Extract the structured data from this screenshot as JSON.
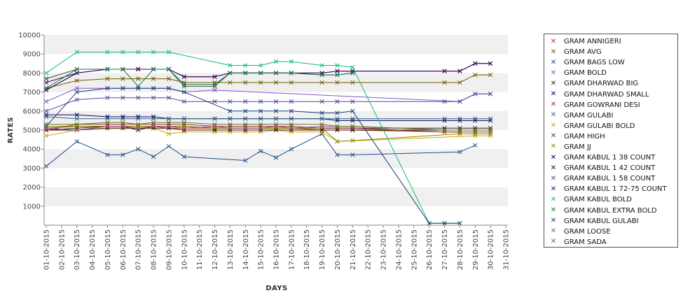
{
  "chart_data": {
    "type": "line",
    "title": "",
    "xlabel": "DAYS",
    "ylabel": "RATES",
    "ylim": [
      0,
      10000
    ],
    "yticks": [
      1000,
      2000,
      3000,
      4000,
      5000,
      6000,
      7000,
      8000,
      9000,
      10000
    ],
    "x": [
      "01-10-2015",
      "02-10-2015",
      "03-10-2015",
      "04-10-2015",
      "05-10-2015",
      "06-10-2015",
      "07-10-2015",
      "08-10-2015",
      "09-10-2015",
      "10-10-2015",
      "11-10-2015",
      "12-10-2015",
      "13-10-2015",
      "14-10-2015",
      "15-10-2015",
      "16-10-2015",
      "17-10-2015",
      "18-10-2015",
      "19-10-2015",
      "20-10-2015",
      "21-10-2015",
      "22-10-2015",
      "23-10-2015",
      "24-10-2015",
      "25-10-2015",
      "26-10-2015",
      "27-10-2015",
      "28-10-2015",
      "29-10-2015",
      "30-10-2015",
      "31-10-2015"
    ],
    "grid": "alternating horizontal bands",
    "legend_position": "right",
    "series": [
      {
        "name": "GRAM ANNIGERI",
        "color": "#cc3311",
        "values": [
          5100,
          null,
          5200,
          null,
          5200,
          5200,
          5200,
          5200,
          5100,
          5100,
          null,
          5100,
          5100,
          5100,
          5100,
          5100,
          5100,
          null,
          5000,
          5000,
          5000,
          null,
          null,
          null,
          null,
          null,
          4900,
          4900,
          null,
          null,
          null
        ]
      },
      {
        "name": "GRAM AVG",
        "color": "#6b5a00",
        "values": [
          7200,
          null,
          7600,
          null,
          7700,
          7700,
          7700,
          7700,
          7700,
          7500,
          null,
          7500,
          7500,
          7500,
          7500,
          7500,
          7500,
          null,
          7500,
          7500,
          7500,
          null,
          null,
          null,
          null,
          null,
          7500,
          7500,
          7900,
          7900,
          null
        ]
      },
      {
        "name": "GRAM BAGS LOW",
        "color": "#1f4e8c",
        "values": [
          3100,
          null,
          4400,
          null,
          3700,
          3700,
          4000,
          3600,
          4150,
          3600,
          null,
          null,
          null,
          3400,
          3900,
          3550,
          4000,
          null,
          4800,
          3700,
          3700,
          null,
          null,
          null,
          null,
          null,
          null,
          3850,
          4200,
          null,
          null
        ]
      },
      {
        "name": "GRAM BOLD",
        "color": "#8855cc",
        "values": [
          6500,
          null,
          7200,
          null,
          7200,
          7200,
          7200,
          7200,
          7200,
          7000,
          null,
          7100,
          null,
          null,
          null,
          null,
          null,
          null,
          null,
          null,
          null,
          null,
          null,
          null,
          null,
          null,
          null,
          6500,
          6900,
          6900,
          null
        ]
      },
      {
        "name": "GRAM DHARWAD BIG",
        "color": "#222222",
        "values": [
          5000,
          null,
          5100,
          null,
          5200,
          5200,
          5000,
          5200,
          5200,
          5200,
          null,
          5100,
          5100,
          5100,
          5100,
          5100,
          5100,
          null,
          5100,
          5100,
          5100,
          null,
          null,
          null,
          null,
          null,
          5100,
          5100,
          5100,
          5100,
          null
        ]
      },
      {
        "name": "GRAM DHARWAD SMALL",
        "color": "#000066",
        "values": [
          5800,
          null,
          5800,
          null,
          5700,
          5700,
          5700,
          5700,
          5600,
          5600,
          null,
          5600,
          5600,
          5600,
          5600,
          5600,
          5600,
          null,
          5600,
          5500,
          5500,
          null,
          null,
          null,
          null,
          null,
          5500,
          5500,
          5500,
          5500,
          null
        ]
      },
      {
        "name": "GRAM GOWRANI DESI",
        "color": "#993333",
        "values": [
          5000,
          null,
          5300,
          null,
          5300,
          5300,
          5300,
          5300,
          5300,
          5300,
          null,
          5200,
          5200,
          5200,
          5200,
          5200,
          5200,
          null,
          5100,
          5100,
          5100,
          null,
          null,
          null,
          null,
          null,
          4900,
          4900,
          4900,
          4900,
          null
        ]
      },
      {
        "name": "GRAM GULABI",
        "color": "#336688",
        "values": [
          5700,
          null,
          5600,
          null,
          5600,
          5600,
          5600,
          5600,
          5600,
          5600,
          null,
          5600,
          5600,
          5600,
          5600,
          5600,
          5600,
          null,
          5600,
          5600,
          5600,
          null,
          null,
          null,
          null,
          null,
          5600,
          5600,
          5600,
          5600,
          null
        ]
      },
      {
        "name": "GRAM GULABI BOLD",
        "color": "#ccaa00",
        "values": [
          4700,
          null,
          5000,
          null,
          5100,
          5100,
          5100,
          5100,
          4800,
          4900,
          null,
          4900,
          4900,
          4900,
          4900,
          5000,
          4900,
          null,
          4900,
          4400,
          null,
          null,
          null,
          null,
          null,
          null,
          null,
          null,
          4700,
          4700,
          null
        ]
      },
      {
        "name": "GRAM HIGH",
        "color": "#335544",
        "values": [
          7700,
          null,
          8200,
          null,
          8200,
          8200,
          8200,
          8200,
          8200,
          7300,
          null,
          7300,
          8000,
          8000,
          8000,
          8000,
          8000,
          null,
          7900,
          7900,
          8000,
          null,
          null,
          null,
          null,
          null,
          null,
          null,
          null,
          null,
          null
        ]
      },
      {
        "name": "GRAM JJ",
        "color": "#888800",
        "values": [
          5200,
          null,
          5200,
          null,
          5200,
          5200,
          5200,
          5200,
          5200,
          5200,
          null,
          5100,
          5100,
          5100,
          5100,
          5100,
          5100,
          null,
          5100,
          4400,
          4450,
          null,
          null,
          null,
          null,
          null,
          null,
          4800,
          4800,
          4800,
          null
        ]
      },
      {
        "name": "GRAM KABUL 1 38 COUNT",
        "color": "#000044",
        "values": [
          7100,
          null,
          8000,
          null,
          8200,
          8200,
          8200,
          8200,
          8200,
          7800,
          null,
          7800,
          8000,
          8000,
          8000,
          8000,
          8000,
          null,
          8000,
          8100,
          8100,
          null,
          null,
          null,
          null,
          null,
          8100,
          8100,
          8500,
          8500,
          null
        ]
      },
      {
        "name": "GRAM KABUL 1 42 COUNT",
        "color": "#331100",
        "values": [
          5000,
          null,
          5000,
          null,
          5100,
          5100,
          5100,
          5100,
          5100,
          5000,
          null,
          5000,
          5000,
          5000,
          5000,
          5000,
          5000,
          null,
          5000,
          5000,
          5000,
          null,
          null,
          null,
          null,
          null,
          5000,
          5000,
          5000,
          5000,
          null
        ]
      },
      {
        "name": "GRAM KABUL 1 58 COUNT",
        "color": "#554499",
        "values": [
          6000,
          null,
          6600,
          null,
          6700,
          6700,
          6700,
          6700,
          6700,
          6500,
          null,
          6500,
          6500,
          6500,
          6500,
          6500,
          6500,
          null,
          6500,
          6500,
          6500,
          null,
          null,
          null,
          null,
          null,
          6500,
          6500,
          6900,
          6900,
          null
        ]
      },
      {
        "name": "GRAM KABUL 1 72-75 COUNT",
        "color": "#440066",
        "values": [
          7500,
          null,
          8000,
          null,
          8200,
          8200,
          8200,
          8200,
          8200,
          7800,
          null,
          7800,
          8000,
          8000,
          8000,
          8000,
          8000,
          null,
          8000,
          8100,
          8100,
          null,
          null,
          null,
          null,
          null,
          8100,
          8100,
          8500,
          8500,
          null
        ]
      },
      {
        "name": "GRAM KABUL BOLD",
        "color": "#11bb77",
        "values": [
          8000,
          null,
          9100,
          null,
          9100,
          9100,
          9100,
          9100,
          9100,
          null,
          null,
          null,
          8400,
          8400,
          8400,
          8600,
          8600,
          null,
          8400,
          8400,
          8300,
          null,
          null,
          null,
          null,
          100,
          100,
          100,
          null,
          null,
          null
        ]
      },
      {
        "name": "GRAM KABUL EXTRA BOLD",
        "color": "#117744",
        "values": [
          7200,
          null,
          8200,
          null,
          8200,
          8200,
          7300,
          8200,
          8200,
          7400,
          null,
          7400,
          8000,
          8000,
          8000,
          8000,
          8000,
          null,
          7900,
          7900,
          8000,
          null,
          null,
          null,
          null,
          null,
          null,
          null,
          null,
          null,
          null
        ]
      },
      {
        "name": "GRAM KABUL GULABI",
        "color": "#1a3c6e",
        "values": [
          5200,
          null,
          7000,
          null,
          7200,
          7200,
          7200,
          7200,
          7200,
          7000,
          null,
          null,
          6000,
          6000,
          6000,
          6000,
          6000,
          null,
          5900,
          5900,
          6000,
          null,
          null,
          null,
          null,
          100,
          100,
          100,
          null,
          null,
          null
        ]
      },
      {
        "name": "GRAM LOOSE",
        "color": "#aa5588",
        "values": [
          5100,
          null,
          5000,
          null,
          5200,
          5200,
          5100,
          5200,
          5200,
          5100,
          null,
          5200,
          5100,
          5100,
          5100,
          5200,
          5100,
          null,
          5200,
          5200,
          5200,
          null,
          null,
          null,
          null,
          null,
          5000,
          5000,
          5000,
          5000,
          null
        ]
      },
      {
        "name": "GRAM SADA",
        "color": "#667722",
        "values": [
          5300,
          null,
          5300,
          null,
          5400,
          5400,
          5300,
          5400,
          5400,
          5400,
          null,
          5300,
          5300,
          5300,
          5300,
          5300,
          5300,
          null,
          5300,
          5200,
          5200,
          null,
          null,
          null,
          null,
          null,
          5000,
          5000,
          5000,
          5000,
          null
        ]
      }
    ]
  }
}
